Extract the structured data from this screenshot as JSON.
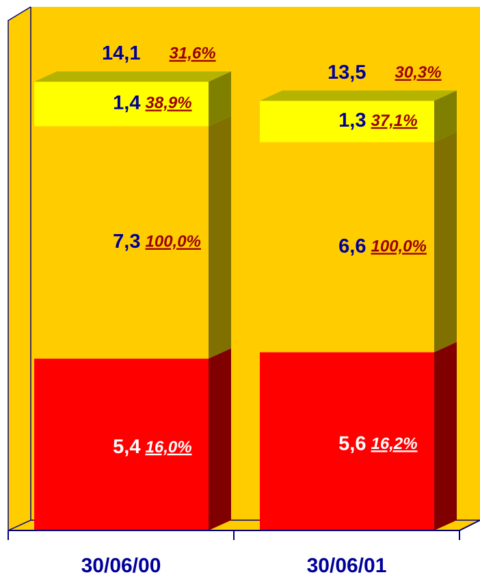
{
  "chart_data": {
    "type": "stacked-bar-3d",
    "categories": [
      "30/06/00",
      "30/06/01"
    ],
    "series": [
      {
        "color": "#ff0000",
        "side_color": "#800000",
        "top_color": "#b00000",
        "label_color": "#ffffff",
        "percent_color": "#ffffff",
        "values": [
          5.4,
          5.6
        ],
        "value_labels": [
          "5,4",
          "5,6"
        ],
        "percent_labels": [
          "16,0%",
          "16,2%"
        ]
      },
      {
        "color": "#ffcc00",
        "side_color": "#807000",
        "top_color": "#b39000",
        "label_color": "#000099",
        "percent_color": "#990000",
        "values": [
          7.3,
          6.6
        ],
        "value_labels": [
          "7,3",
          "6,6"
        ],
        "percent_labels": [
          "100,0%",
          "100,0%"
        ]
      },
      {
        "color": "#ffff00",
        "side_color": "#808000",
        "top_color": "#b3b300",
        "label_color": "#000099",
        "percent_color": "#990000",
        "values": [
          1.4,
          1.3
        ],
        "value_labels": [
          "1,4",
          "1,3"
        ],
        "percent_labels": [
          "38,9%",
          "37,1%"
        ]
      }
    ],
    "totals": [
      14.1,
      13.5
    ],
    "total_labels": [
      "14,1",
      "13,5"
    ],
    "total_percent_labels": [
      "31,6%",
      "30,3%"
    ],
    "background": "#ffcc00"
  }
}
